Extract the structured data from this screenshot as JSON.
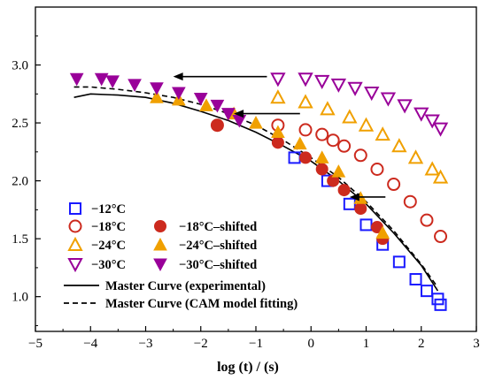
{
  "chart_data": {
    "type": "scatter",
    "title": "",
    "xlabel": "log (t) / (s)",
    "ylabel": "",
    "xlim": [
      -5,
      3
    ],
    "ylim": [
      0.7,
      3.5
    ],
    "x_ticks": [
      -5,
      -4,
      -3,
      -2,
      -1,
      0,
      1,
      2,
      3
    ],
    "y_ticks": [
      1.0,
      1.5,
      2.0,
      2.5,
      3.0
    ],
    "x_tick_labels": [
      "−5",
      "−4",
      "−3",
      "−2",
      "−1",
      "0",
      "1",
      "2",
      "3"
    ],
    "y_tick_labels": [
      "1.0",
      "1.5",
      "2.0",
      "2.5",
      "3.0"
    ],
    "grid": false,
    "legend_position": "bottom-left",
    "legend": {
      "minus12": "−12°C",
      "minus18": "−18°C",
      "minus18_shifted": "−18°C–shifted",
      "minus24": "−24°C",
      "minus24_shifted": "−24°C–shifted",
      "minus30": "−30°C",
      "minus30_shifted": "−30°C–shifted",
      "master_exp": "Master Curve (experimental)",
      "master_cam": "Master Curve (CAM model fitting)"
    },
    "colors": {
      "minus12": "#1a1aff",
      "minus18": "#cc2a1e",
      "minus24": "#f0a000",
      "minus30": "#990099"
    },
    "series": [
      {
        "key": "m12",
        "name": "−12°C",
        "marker": "square-open",
        "color": "#1a1aff",
        "x": [
          -0.3,
          0.3,
          0.7,
          1.0,
          1.3,
          1.6,
          1.9,
          2.1,
          2.3,
          2.35
        ],
        "y": [
          2.2,
          2.0,
          1.8,
          1.62,
          1.45,
          1.3,
          1.15,
          1.05,
          0.98,
          0.93
        ]
      },
      {
        "key": "m18",
        "name": "−18°C",
        "marker": "circle-open",
        "color": "#cc2a1e",
        "x": [
          -1.7,
          -0.6,
          -0.1,
          0.2,
          0.4,
          0.6,
          0.9,
          1.2,
          1.5,
          1.8,
          2.1,
          2.35
        ],
        "y": [
          2.48,
          2.48,
          2.44,
          2.4,
          2.35,
          2.3,
          2.22,
          2.1,
          1.97,
          1.82,
          1.66,
          1.52
        ]
      },
      {
        "key": "m24",
        "name": "−24°C",
        "marker": "triangle-up-open",
        "color": "#f0a000",
        "x": [
          -0.6,
          -0.1,
          0.3,
          0.7,
          1.0,
          1.3,
          1.6,
          1.9,
          2.2,
          2.35
        ],
        "y": [
          2.72,
          2.68,
          2.62,
          2.55,
          2.48,
          2.4,
          2.3,
          2.2,
          2.1,
          2.03
        ]
      },
      {
        "key": "m30",
        "name": "−30°C",
        "marker": "triangle-down-open",
        "color": "#990099",
        "x": [
          -0.6,
          -0.1,
          0.2,
          0.5,
          0.8,
          1.1,
          1.4,
          1.7,
          2.0,
          2.2,
          2.35
        ],
        "y": [
          2.88,
          2.88,
          2.86,
          2.83,
          2.8,
          2.76,
          2.71,
          2.65,
          2.58,
          2.52,
          2.45
        ]
      },
      {
        "key": "m18s",
        "name": "−18°C–shifted",
        "marker": "circle-filled",
        "color": "#cc2a1e",
        "x": [
          -1.7,
          -0.6,
          -0.1,
          0.2,
          0.4,
          0.6,
          0.9,
          1.2,
          1.3
        ],
        "y": [
          2.48,
          2.33,
          2.2,
          2.1,
          2.0,
          1.92,
          1.76,
          1.6,
          1.5
        ]
      },
      {
        "key": "m24s",
        "name": "−24°C–shifted",
        "marker": "triangle-up-filled",
        "color": "#f0a000",
        "x": [
          -2.8,
          -2.4,
          -1.9,
          -1.4,
          -1.0,
          -0.6,
          -0.2,
          0.2,
          0.5,
          0.9,
          1.3
        ],
        "y": [
          2.72,
          2.7,
          2.65,
          2.58,
          2.5,
          2.42,
          2.32,
          2.2,
          2.08,
          1.85,
          1.55
        ]
      },
      {
        "key": "m30s",
        "name": "−30°C–shifted",
        "marker": "triangle-down-filled",
        "color": "#990099",
        "x": [
          -4.25,
          -3.8,
          -3.6,
          -3.2,
          -2.8,
          -2.4,
          -2.0,
          -1.7,
          -1.5,
          -1.3
        ],
        "y": [
          2.88,
          2.88,
          2.86,
          2.83,
          2.8,
          2.76,
          2.71,
          2.65,
          2.58,
          2.52
        ]
      },
      {
        "key": "master_exp",
        "name": "Master Curve (experimental)",
        "line": "solid",
        "color": "#000000",
        "x": [
          -4.3,
          -4.0,
          -3.5,
          -3.0,
          -2.5,
          -2.0,
          -1.5,
          -1.0,
          -0.5,
          0.0,
          0.5,
          1.0,
          1.5,
          2.0,
          2.3
        ],
        "y": [
          2.72,
          2.75,
          2.74,
          2.72,
          2.67,
          2.6,
          2.52,
          2.42,
          2.3,
          2.17,
          2.0,
          1.8,
          1.55,
          1.27,
          1.05
        ]
      },
      {
        "key": "master_cam",
        "name": "Master Curve (CAM model fitting)",
        "line": "dashed",
        "color": "#000000",
        "x": [
          -4.3,
          -4.0,
          -3.5,
          -3.0,
          -2.5,
          -2.0,
          -1.5,
          -1.0,
          -0.5,
          0.0,
          0.5,
          1.0,
          1.5,
          2.0,
          2.3
        ],
        "y": [
          2.81,
          2.81,
          2.79,
          2.76,
          2.72,
          2.66,
          2.58,
          2.48,
          2.35,
          2.2,
          2.03,
          1.82,
          1.57,
          1.28,
          1.08
        ]
      }
    ],
    "arrows": [
      {
        "from": [
          -0.8,
          2.9
        ],
        "to": [
          -2.5,
          2.9
        ]
      },
      {
        "from": [
          -0.2,
          2.58
        ],
        "to": [
          -1.4,
          2.58
        ]
      },
      {
        "from": [
          1.35,
          1.86
        ],
        "to": [
          0.7,
          1.86
        ]
      }
    ]
  }
}
